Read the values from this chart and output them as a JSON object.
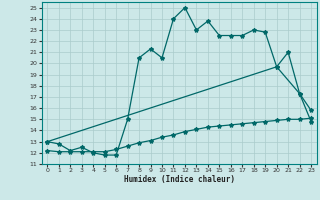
{
  "xlabel": "Humidex (Indice chaleur)",
  "background_color": "#cce8e8",
  "grid_color": "#aacccc",
  "line_color": "#006868",
  "xlim": [
    -0.5,
    23.5
  ],
  "ylim": [
    11,
    25.5
  ],
  "xticks": [
    0,
    1,
    2,
    3,
    4,
    5,
    6,
    7,
    8,
    9,
    10,
    11,
    12,
    13,
    14,
    15,
    16,
    17,
    18,
    19,
    20,
    21,
    22,
    23
  ],
  "yticks": [
    11,
    12,
    13,
    14,
    15,
    16,
    17,
    18,
    19,
    20,
    21,
    22,
    23,
    24,
    25
  ],
  "line1_x": [
    0,
    1,
    2,
    3,
    4,
    5,
    6,
    7,
    8,
    9,
    10,
    11,
    12,
    13,
    14,
    15,
    16,
    17,
    18,
    19,
    20,
    21,
    22,
    23
  ],
  "line1_y": [
    13.0,
    12.8,
    12.2,
    12.5,
    12.0,
    11.8,
    11.8,
    15.0,
    20.5,
    21.3,
    20.5,
    24.0,
    25.0,
    23.0,
    23.8,
    22.5,
    22.5,
    22.5,
    23.0,
    22.8,
    19.7,
    21.0,
    17.3,
    15.8
  ],
  "line2_x": [
    0,
    20,
    22,
    23
  ],
  "line2_y": [
    13.0,
    19.7,
    17.3,
    14.8
  ],
  "line3_x": [
    0,
    1,
    2,
    3,
    4,
    5,
    6,
    7,
    8,
    9,
    10,
    11,
    12,
    13,
    14,
    15,
    16,
    17,
    18,
    19,
    20,
    21,
    22,
    23
  ],
  "line3_y": [
    12.2,
    12.1,
    12.1,
    12.1,
    12.1,
    12.1,
    12.3,
    12.6,
    12.9,
    13.1,
    13.4,
    13.6,
    13.9,
    14.1,
    14.3,
    14.4,
    14.5,
    14.6,
    14.7,
    14.8,
    14.9,
    15.0,
    15.0,
    15.1
  ],
  "font_family": "monospace"
}
